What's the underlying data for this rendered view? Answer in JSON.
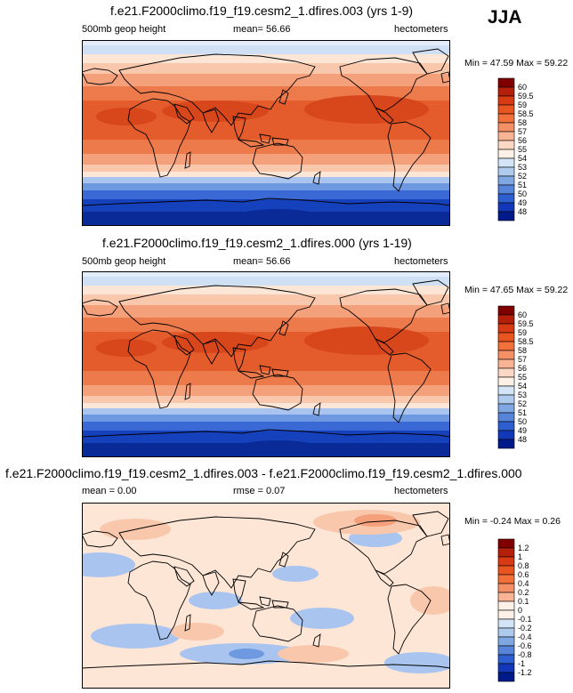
{
  "season": "JJA",
  "panels": [
    {
      "title": "f.e21.F2000climo.f19_f19.cesm2_1.dfires.003 (yrs 1-9)",
      "left_label": "500mb geop height",
      "center_label": "mean=  56.66",
      "right_label": "hectometers",
      "minmax": "Min = 47.59 Max = 59.22",
      "kind": "field"
    },
    {
      "title": "f.e21.F2000climo.f19_f19.cesm2_1.dfires.000 (yrs 1-19)",
      "left_label": "500mb geop height",
      "center_label": "mean=  56.66",
      "right_label": "hectometers",
      "minmax": "Min = 47.65 Max = 59.22",
      "kind": "field"
    },
    {
      "title": "f.e21.F2000climo.f19_f19.cesm2_1.dfires.003 - f.e21.F2000climo.f19_f19.cesm2_1.dfires.000",
      "left_label": "mean =  0.00",
      "center_label": "rmse =  0.07",
      "right_label": "hectometers",
      "minmax": "Min = -0.24 Max =  0.26",
      "kind": "diff"
    }
  ],
  "colorbars": {
    "field": {
      "labels": [
        "60",
        "59.5",
        "59",
        "58.5",
        "58",
        "57",
        "56",
        "55",
        "54",
        "53",
        "52",
        "51",
        "50",
        "49",
        "48"
      ],
      "colors": [
        "#800000",
        "#b5200a",
        "#d83a14",
        "#e9551f",
        "#f2703a",
        "#f59066",
        "#f8b493",
        "#fbd8c4",
        "#fdf0e6",
        "#d3e4f6",
        "#aecbee",
        "#7fa8e2",
        "#5584d8",
        "#2d5fd0",
        "#1237b8",
        "#001a8a"
      ]
    },
    "diff": {
      "labels": [
        "1.2",
        "1",
        "0.8",
        "0.6",
        "0.4",
        "0.2",
        "0.1",
        "0",
        "-0.1",
        "-0.2",
        "-0.4",
        "-0.6",
        "-0.8",
        "-1",
        "-1.2"
      ],
      "colors": [
        "#800000",
        "#b5200a",
        "#d83a14",
        "#e9551f",
        "#f2703a",
        "#f59066",
        "#f8b493",
        "#fdf0e6",
        "#fdf0e6",
        "#d3e4f6",
        "#aecbee",
        "#7fa8e2",
        "#5584d8",
        "#2d5fd0",
        "#1237b8",
        "#001a8a"
      ]
    }
  },
  "map_palette": {
    "ice": "#e2ecfa",
    "lightblue": "#cfe0f5",
    "pale": "#fde6d6",
    "peach": "#f9c7ab",
    "salmon": "#f4a07b",
    "orange": "#ec7a4b",
    "red": "#e45c2c",
    "deepred": "#d8461c",
    "blue1": "#a9c5ef",
    "blue2": "#6e98e0",
    "blue3": "#3a68d4",
    "blue4": "#1641bd",
    "blue5": "#0a2a98",
    "coast": "#000000"
  }
}
